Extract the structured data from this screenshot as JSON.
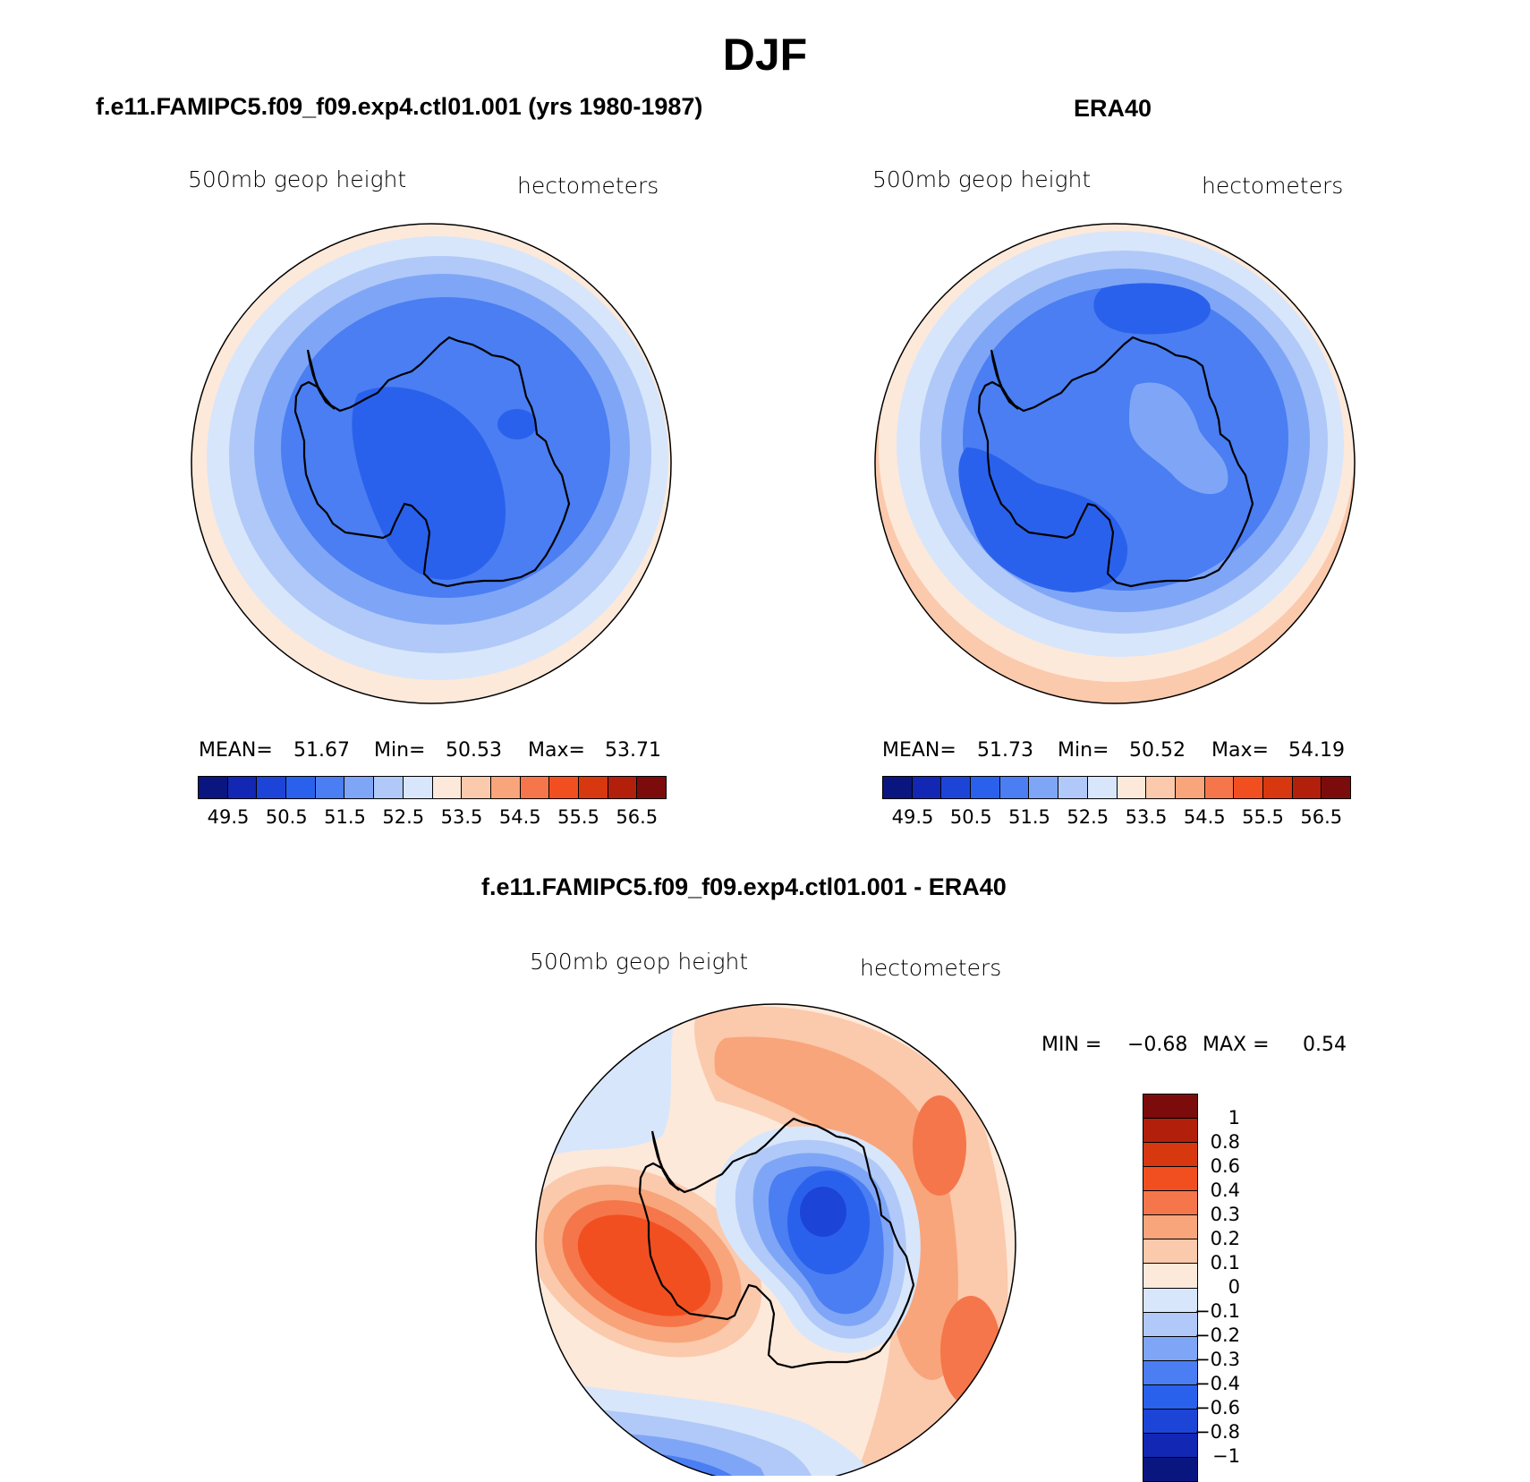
{
  "figure": {
    "title": "DJF"
  },
  "panels": {
    "model": {
      "title": "f.e11.FAMIPC5.f09_f09.exp4.ctl01.001 (yrs 1980-1987)",
      "left_label": "500mb  geop  height",
      "right_label": "hectometers",
      "mean_label": "MEAN=",
      "mean": "51.67",
      "min_label": "Min=",
      "min": "50.53",
      "max_label": "Max=",
      "max": "53.71"
    },
    "obs": {
      "title": "ERA40",
      "left_label": "500mb  geop  height",
      "right_label": "hectometers",
      "mean_label": "MEAN=",
      "mean": "51.73",
      "min_label": "Min=",
      "min": "50.52",
      "max_label": "Max=",
      "max": "54.19"
    },
    "diff": {
      "title": "f.e11.FAMIPC5.f09_f09.exp4.ctl01.001 - ERA40",
      "left_label": "500mb  geop  height",
      "right_label": "hectometers",
      "min_label": "MIN =",
      "min": "−0.68",
      "max_label": "MAX =",
      "max": "0.54"
    }
  },
  "colorbars": {
    "absolute": {
      "colors": [
        "#0a1680",
        "#1227b4",
        "#1c45d8",
        "#2a61ec",
        "#4a7ef2",
        "#7fa6f6",
        "#b0c9f8",
        "#d8e6fb",
        "#fde9da",
        "#fbc9ac",
        "#f8a57b",
        "#f5764a",
        "#f24f21",
        "#d7380f",
        "#b2200c",
        "#7c0c0c"
      ],
      "tick_labels": [
        "49.5",
        "50.5",
        "51.5",
        "52.5",
        "53.5",
        "54.5",
        "55.5",
        "56.5"
      ]
    },
    "difference": {
      "colors": [
        "#7c0c0c",
        "#b2200c",
        "#d7380f",
        "#f24f21",
        "#f5764a",
        "#f8a57b",
        "#fbc9ac",
        "#fde9da",
        "#d8e6fb",
        "#b0c9f8",
        "#7fa6f6",
        "#4a7ef2",
        "#2a61ec",
        "#1c45d8",
        "#1227b4",
        "#0a1680"
      ],
      "tick_labels": [
        "1",
        "0.8",
        "0.6",
        "0.4",
        "0.3",
        "0.2",
        "0.1",
        "0",
        "−0.1",
        "−0.2",
        "−0.3",
        "−0.4",
        "−0.6",
        "−0.8",
        "−1"
      ]
    }
  }
}
